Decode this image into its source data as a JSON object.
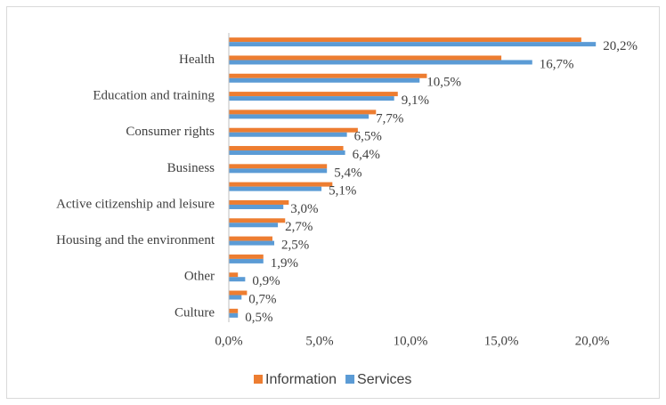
{
  "chart_data": {
    "type": "hbar",
    "categories": [
      null,
      "Health",
      null,
      "Education and training",
      null,
      "Consumer rights",
      null,
      "Business",
      null,
      "Active citizenship and leisure",
      null,
      "Housing and the environment",
      null,
      "Other",
      null,
      "Culture"
    ],
    "series": [
      {
        "name": "Information",
        "color": "#ed7d31",
        "values": [
          19.4,
          15.0,
          10.9,
          9.3,
          8.1,
          7.1,
          6.3,
          5.4,
          5.7,
          3.3,
          3.1,
          2.4,
          1.9,
          0.5,
          1.0,
          0.5
        ]
      },
      {
        "name": "Services",
        "color": "#5b9bd5",
        "values": [
          20.2,
          16.7,
          10.5,
          9.1,
          7.7,
          6.5,
          6.4,
          5.4,
          5.1,
          3.0,
          2.7,
          2.5,
          1.9,
          0.9,
          0.7,
          0.5
        ],
        "value_labels": [
          "20,2%",
          "16,7%",
          "10,5%",
          "9,1%",
          "7,7%",
          "6,5%",
          "6,4%",
          "5,4%",
          "5,1%",
          "3,0%",
          "2,7%",
          "2,5%",
          "1,9%",
          "0,9%",
          "0,7%",
          "0,5%"
        ]
      }
    ],
    "xlim": [
      0,
      22.2
    ],
    "xticks": [
      {
        "value": 0,
        "label": "0,0%"
      },
      {
        "value": 5,
        "label": "5,0%"
      },
      {
        "value": 10,
        "label": "10,0%"
      },
      {
        "value": 15,
        "label": "15,0%"
      },
      {
        "value": 20,
        "label": "20,0%"
      }
    ],
    "grid": false,
    "legend": "bottom"
  }
}
